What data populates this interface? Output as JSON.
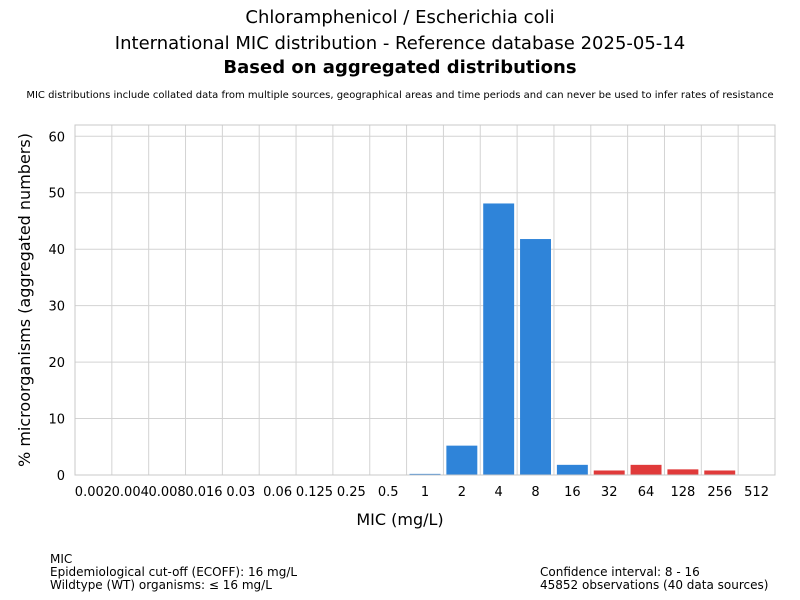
{
  "header": {
    "title_line1": "Chloramphenicol / Escherichia coli",
    "title_line2": "International MIC distribution - Reference database 2025-05-14",
    "title_line3": "Based on aggregated distributions",
    "subtitle": "MIC distributions include collated data from multiple sources, geographical areas and time periods and can never be used to infer rates of resistance"
  },
  "footer": {
    "left": {
      "line1": "MIC",
      "line2": "Epidemiological cut-off (ECOFF): 16 mg/L",
      "line3": "Wildtype (WT) organisms: ≤ 16 mg/L"
    },
    "right": {
      "line1": "Confidence interval: 8 - 16",
      "line2": "45852 observations (40 data sources)"
    }
  },
  "colors": {
    "wildtype": "#2f84d9",
    "non_wildtype": "#e03a3a",
    "grid": "#d3d3d3"
  },
  "chart_data": {
    "type": "bar",
    "categories": [
      "0.002",
      "0.004",
      "0.008",
      "0.016",
      "0.03",
      "0.06",
      "0.125",
      "0.25",
      "0.5",
      "1",
      "2",
      "4",
      "8",
      "16",
      "32",
      "64",
      "128",
      "256",
      "512"
    ],
    "values": [
      0,
      0,
      0,
      0,
      0,
      0,
      0,
      0,
      0,
      0.2,
      5.2,
      48.1,
      41.8,
      1.8,
      0.8,
      1.8,
      1.0,
      0.8,
      0
    ],
    "wildtype": [
      true,
      true,
      true,
      true,
      true,
      true,
      true,
      true,
      true,
      true,
      true,
      true,
      true,
      true,
      false,
      false,
      false,
      false,
      false
    ],
    "xlabel": "MIC (mg/L)",
    "ylabel": "% microorganisms (aggregated numbers)",
    "ylim": [
      0,
      62
    ],
    "yticks": [
      0,
      10,
      20,
      30,
      40,
      50,
      60
    ],
    "grid": true
  }
}
